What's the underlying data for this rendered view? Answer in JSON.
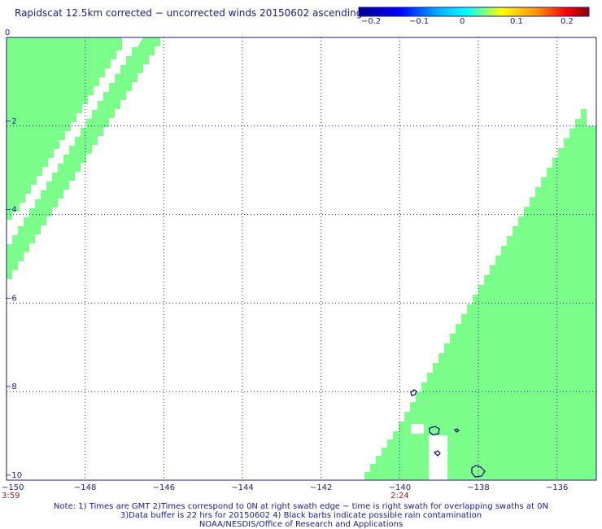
{
  "title": "Rapidscat 12.5km corrected − uncorrected winds 20150602 ascending",
  "colorbar": {
    "labels": [
      "−0.2",
      "−0.1",
      "0",
      "0.1",
      "0.2"
    ],
    "stops": [
      "#00008c",
      "#0000ff",
      "#00b4ff",
      "#00ffff",
      "#ffff00",
      "#ff8c00",
      "#ff0000",
      "#8c0000"
    ]
  },
  "map": {
    "x_ticks": [
      "−150",
      "−148",
      "−146",
      "−144",
      "−142",
      "−140",
      "−138",
      "−136"
    ],
    "y_ticks": [
      "0",
      "−2",
      "−4",
      "−6",
      "−8",
      "−10"
    ],
    "time_labels": [
      {
        "lon": -150,
        "text": "3:59"
      },
      {
        "lon": -140,
        "text": "2:24"
      }
    ],
    "lon_range": [
      -150,
      -135
    ],
    "lat_range": [
      -10,
      0
    ],
    "swath_color": "#7cff8a",
    "land_color": "#00006e"
  },
  "notes": [
    "Note: 1) Times are GMT 2)Times correspond to 0N at right swath edge − time is right swath for overlapping swaths at 0N",
    "3)Data buffer is 22 hrs for 20150602 4) Black barbs indicate possible rain contamination",
    "NOAA/NESDIS/Office of Research and Applications"
  ]
}
